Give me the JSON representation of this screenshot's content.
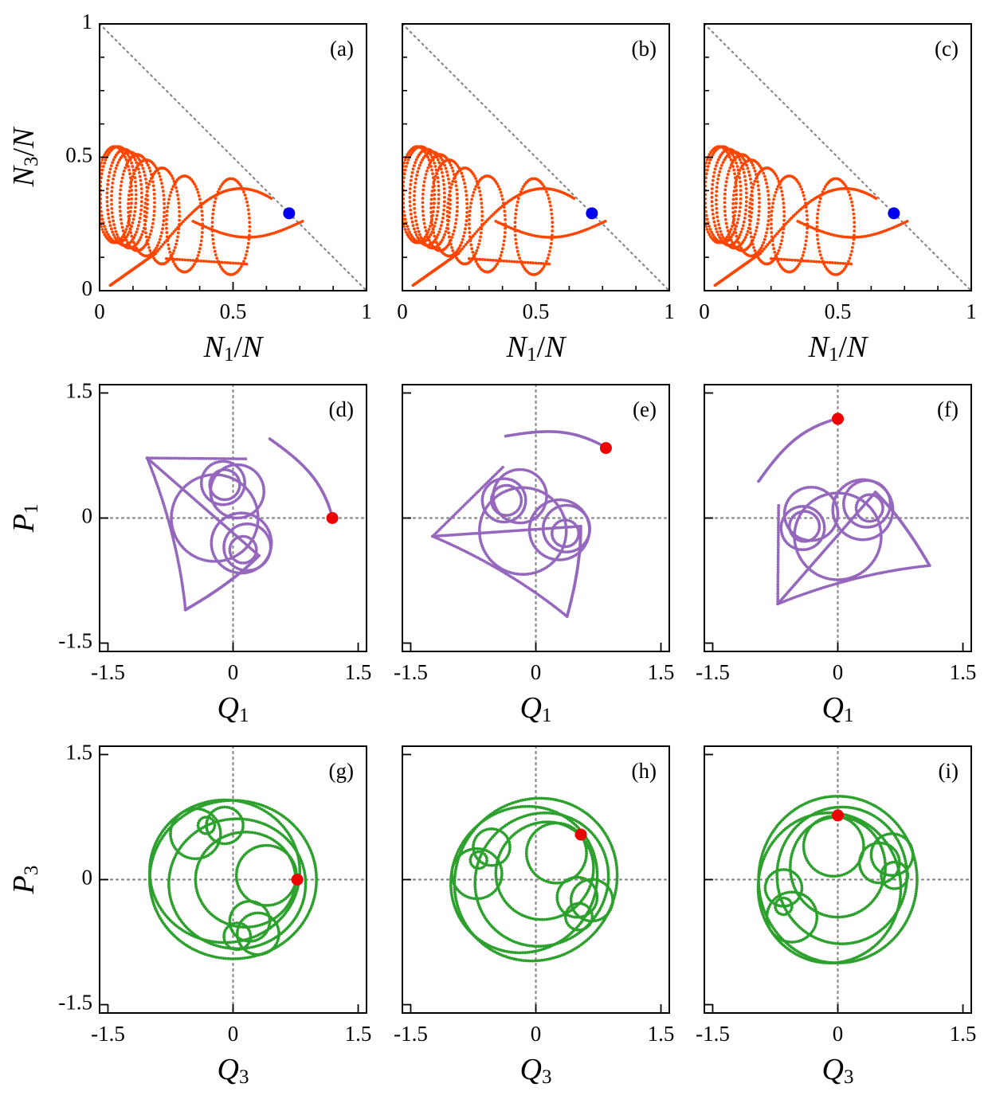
{
  "chart_data": {
    "type": "scatter",
    "layout": "3x3 grid of phase-space trajectory panels",
    "rows": [
      {
        "xlabel": {
          "sym": "N",
          "sub": "1",
          "den": "N"
        },
        "ylabel": {
          "sym": "N",
          "sub": "3",
          "den": "N"
        },
        "xlim": [
          0,
          1
        ],
        "ylim": [
          0,
          1
        ],
        "xticks": [
          {
            "v": 0,
            "t": "0"
          },
          {
            "v": 0.5,
            "t": "0.5"
          },
          {
            "v": 1,
            "t": "1"
          }
        ],
        "yticks": [
          {
            "v": 0,
            "t": "0"
          },
          {
            "v": 0.5,
            "t": "0.5"
          },
          {
            "v": 1,
            "t": "1"
          }
        ],
        "reference_line": "N1/N + N3/N = 1 (dotted diagonal)",
        "trajectory_color": "#ff4500",
        "marker_color": "#0000ee"
      },
      {
        "xlabel": {
          "sym": "Q",
          "sub": "1"
        },
        "ylabel": {
          "sym": "P",
          "sub": "1"
        },
        "xlim": [
          -1.6,
          1.6
        ],
        "ylim": [
          -1.6,
          1.6
        ],
        "xticks": [
          {
            "v": -1.5,
            "t": "-1.5"
          },
          {
            "v": 0,
            "t": "0"
          },
          {
            "v": 1.5,
            "t": "1.5"
          }
        ],
        "yticks": [
          {
            "v": -1.5,
            "t": "-1.5"
          },
          {
            "v": 0,
            "t": "0"
          },
          {
            "v": 1.5,
            "t": "1.5"
          }
        ],
        "reference_line": "dotted axes through 0",
        "trajectory_color": "#9467bd",
        "marker_color": "#ee0000"
      },
      {
        "xlabel": {
          "sym": "Q",
          "sub": "3"
        },
        "ylabel": {
          "sym": "P",
          "sub": "3"
        },
        "xlim": [
          -1.6,
          1.6
        ],
        "ylim": [
          -1.6,
          1.6
        ],
        "xticks": [
          {
            "v": -1.5,
            "t": "-1.5"
          },
          {
            "v": 0,
            "t": "0"
          },
          {
            "v": 1.5,
            "t": "1.5"
          }
        ],
        "yticks": [
          {
            "v": -1.5,
            "t": "-1.5"
          },
          {
            "v": 0,
            "t": "0"
          },
          {
            "v": 1.5,
            "t": "1.5"
          }
        ],
        "reference_line": "dotted axes through 0",
        "trajectory_color": "#2ca02c",
        "marker_color": "#ee0000"
      }
    ],
    "panels": [
      {
        "label": "(a)",
        "row": 0,
        "rotation_deg": 0,
        "marker": [
          0.71,
          0.29
        ],
        "show_ylabel": true
      },
      {
        "label": "(b)",
        "row": 0,
        "rotation_deg": 0,
        "marker": [
          0.71,
          0.29
        ],
        "show_ylabel": false
      },
      {
        "label": "(c)",
        "row": 0,
        "rotation_deg": 0,
        "marker": [
          0.71,
          0.29
        ],
        "show_ylabel": false
      },
      {
        "label": "(d)",
        "row": 1,
        "rotation_deg": 0,
        "marker": [
          1.19,
          0.0
        ],
        "show_ylabel": true
      },
      {
        "label": "(e)",
        "row": 1,
        "rotation_deg": 45,
        "marker": [
          0.84,
          0.84
        ],
        "show_ylabel": false
      },
      {
        "label": "(f)",
        "row": 1,
        "rotation_deg": 90,
        "marker": [
          0.0,
          1.19
        ],
        "show_ylabel": false
      },
      {
        "label": "(g)",
        "row": 2,
        "rotation_deg": 0,
        "marker": [
          0.77,
          0.0
        ],
        "show_ylabel": true
      },
      {
        "label": "(h)",
        "row": 2,
        "rotation_deg": 45,
        "marker": [
          0.54,
          0.54
        ],
        "show_ylabel": false
      },
      {
        "label": "(i)",
        "row": 2,
        "rotation_deg": 90,
        "marker": [
          0.0,
          0.77
        ],
        "show_ylabel": false
      }
    ]
  }
}
